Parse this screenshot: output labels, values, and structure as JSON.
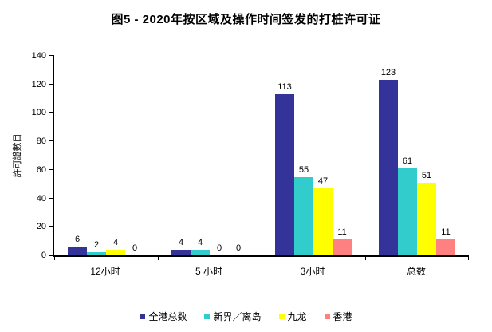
{
  "chart_data": {
    "type": "bar",
    "title": "图5 - 2020年按区域及操作时间签发的打桩许可证",
    "xlabel": "",
    "ylabel": "許可證數目",
    "categories": [
      "12小时",
      "5 小时",
      "3小时",
      "总数"
    ],
    "series": [
      {
        "name": "全港总数",
        "color": "#333399",
        "values": [
          6,
          4,
          113,
          123
        ]
      },
      {
        "name": "新界／离岛",
        "color": "#33CCCC",
        "values": [
          2,
          4,
          55,
          61
        ]
      },
      {
        "name": "九龙",
        "color": "#FFFF00",
        "values": [
          4,
          0,
          47,
          51
        ]
      },
      {
        "name": "香港",
        "color": "#FF8080",
        "values": [
          0,
          0,
          11,
          11
        ]
      }
    ],
    "ylim": [
      0,
      140
    ],
    "yticks": [
      0,
      20,
      40,
      60,
      80,
      100,
      120,
      140
    ],
    "grid": false,
    "legend_position": "bottom",
    "data_labels": true,
    "axis_color": "#000000",
    "background_color": "#ffffff"
  }
}
